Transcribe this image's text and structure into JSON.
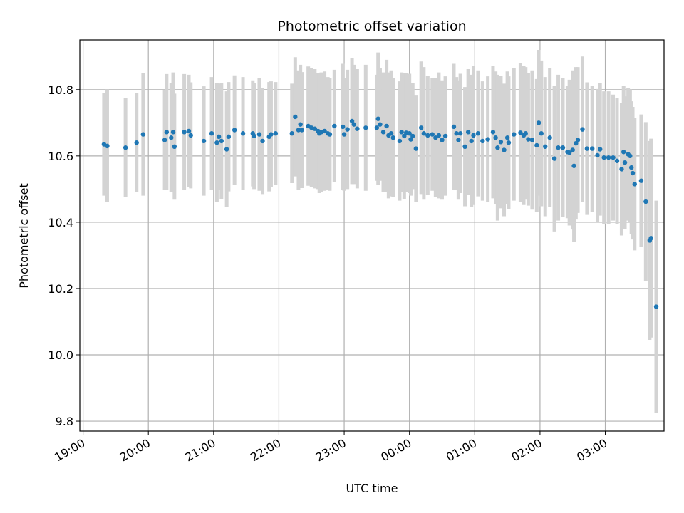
{
  "chart_data": {
    "type": "scatter",
    "title": "Photometric offset variation",
    "xlabel": "UTC time",
    "ylabel": "Photometric offset",
    "x_tick_labels": [
      "19:00",
      "20:00",
      "21:00",
      "22:00",
      "23:00",
      "00:00",
      "01:00",
      "02:00",
      "03:00"
    ],
    "y_tick_labels": [
      "9.8",
      "10.0",
      "10.2",
      "10.4",
      "10.6",
      "10.8"
    ],
    "xlim_hours": [
      18.95,
      27.9
    ],
    "ylim": [
      9.77,
      10.95
    ],
    "grid": true,
    "marker_color": "#1f77b4",
    "errorbar_color": "#d3d3d3",
    "points": [
      [
        19.32,
        10.635,
        0.155
      ],
      [
        19.37,
        10.63,
        0.17
      ],
      [
        19.65,
        10.625,
        0.15
      ],
      [
        19.82,
        10.64,
        0.15
      ],
      [
        19.92,
        10.665,
        0.185
      ],
      [
        20.25,
        10.648,
        0.15
      ],
      [
        20.28,
        10.672,
        0.175
      ],
      [
        20.35,
        10.655,
        0.165
      ],
      [
        20.38,
        10.672,
        0.18
      ],
      [
        20.4,
        10.628,
        0.16
      ],
      [
        20.55,
        10.672,
        0.175
      ],
      [
        20.62,
        10.675,
        0.17
      ],
      [
        20.65,
        10.662,
        0.16
      ],
      [
        20.85,
        10.645,
        0.165
      ],
      [
        20.97,
        10.668,
        0.17
      ],
      [
        21.05,
        10.64,
        0.18
      ],
      [
        21.08,
        10.658,
        0.16
      ],
      [
        21.12,
        10.645,
        0.175
      ],
      [
        21.2,
        10.62,
        0.175
      ],
      [
        21.23,
        10.658,
        0.165
      ],
      [
        21.32,
        10.678,
        0.165
      ],
      [
        21.45,
        10.668,
        0.17
      ],
      [
        21.6,
        10.668,
        0.16
      ],
      [
        21.62,
        10.66,
        0.16
      ],
      [
        21.7,
        10.665,
        0.17
      ],
      [
        21.75,
        10.645,
        0.16
      ],
      [
        21.85,
        10.658,
        0.165
      ],
      [
        21.88,
        10.665,
        0.16
      ],
      [
        21.95,
        10.668,
        0.155
      ],
      [
        22.2,
        10.668,
        0.15
      ],
      [
        22.25,
        10.718,
        0.18
      ],
      [
        22.3,
        10.678,
        0.18
      ],
      [
        22.33,
        10.695,
        0.18
      ],
      [
        22.35,
        10.678,
        0.175
      ],
      [
        22.45,
        10.69,
        0.18
      ],
      [
        22.5,
        10.685,
        0.18
      ],
      [
        22.55,
        10.682,
        0.18
      ],
      [
        22.6,
        10.675,
        0.175
      ],
      [
        22.62,
        10.668,
        0.18
      ],
      [
        22.65,
        10.672,
        0.18
      ],
      [
        22.7,
        10.675,
        0.18
      ],
      [
        22.75,
        10.668,
        0.17
      ],
      [
        22.78,
        10.665,
        0.17
      ],
      [
        22.85,
        10.69,
        0.17
      ],
      [
        22.98,
        10.688,
        0.19
      ],
      [
        23.0,
        10.665,
        0.17
      ],
      [
        23.05,
        10.68,
        0.18
      ],
      [
        23.12,
        10.705,
        0.19
      ],
      [
        23.15,
        10.695,
        0.18
      ],
      [
        23.2,
        10.682,
        0.18
      ],
      [
        23.33,
        10.685,
        0.19
      ],
      [
        23.5,
        10.685,
        0.16
      ],
      [
        23.52,
        10.712,
        0.2
      ],
      [
        23.55,
        10.695,
        0.17
      ],
      [
        23.6,
        10.672,
        0.18
      ],
      [
        23.65,
        10.69,
        0.2
      ],
      [
        23.68,
        10.662,
        0.19
      ],
      [
        23.72,
        10.668,
        0.19
      ],
      [
        23.75,
        10.655,
        0.18
      ],
      [
        23.85,
        10.645,
        0.18
      ],
      [
        23.88,
        10.672,
        0.18
      ],
      [
        23.92,
        10.66,
        0.19
      ],
      [
        23.95,
        10.67,
        0.18
      ],
      [
        24.0,
        10.668,
        0.18
      ],
      [
        24.02,
        10.65,
        0.17
      ],
      [
        24.05,
        10.66,
        0.16
      ],
      [
        24.1,
        10.622,
        0.16
      ],
      [
        24.18,
        10.685,
        0.2
      ],
      [
        24.22,
        10.668,
        0.2
      ],
      [
        24.28,
        10.662,
        0.18
      ],
      [
        24.35,
        10.665,
        0.17
      ],
      [
        24.4,
        10.655,
        0.18
      ],
      [
        24.45,
        10.662,
        0.19
      ],
      [
        24.5,
        10.648,
        0.18
      ],
      [
        24.55,
        10.66,
        0.18
      ],
      [
        24.68,
        10.688,
        0.19
      ],
      [
        24.72,
        10.668,
        0.17
      ],
      [
        24.75,
        10.648,
        0.18
      ],
      [
        24.78,
        10.668,
        0.18
      ],
      [
        24.85,
        10.628,
        0.18
      ],
      [
        24.9,
        10.672,
        0.19
      ],
      [
        24.95,
        10.645,
        0.2
      ],
      [
        24.98,
        10.662,
        0.21
      ],
      [
        25.05,
        10.668,
        0.19
      ],
      [
        25.12,
        10.645,
        0.18
      ],
      [
        25.2,
        10.65,
        0.19
      ],
      [
        25.28,
        10.672,
        0.2
      ],
      [
        25.32,
        10.655,
        0.2
      ],
      [
        25.35,
        10.625,
        0.22
      ],
      [
        25.4,
        10.642,
        0.2
      ],
      [
        25.45,
        10.618,
        0.2
      ],
      [
        25.5,
        10.655,
        0.2
      ],
      [
        25.52,
        10.64,
        0.2
      ],
      [
        25.6,
        10.665,
        0.2
      ],
      [
        25.7,
        10.67,
        0.21
      ],
      [
        25.75,
        10.662,
        0.21
      ],
      [
        25.78,
        10.668,
        0.2
      ],
      [
        25.82,
        10.65,
        0.2
      ],
      [
        25.88,
        10.648,
        0.21
      ],
      [
        25.95,
        10.632,
        0.2
      ],
      [
        25.98,
        10.7,
        0.22
      ],
      [
        26.02,
        10.668,
        0.22
      ],
      [
        26.08,
        10.628,
        0.21
      ],
      [
        26.15,
        10.655,
        0.21
      ],
      [
        26.22,
        10.592,
        0.22
      ],
      [
        26.28,
        10.625,
        0.22
      ],
      [
        26.35,
        10.625,
        0.21
      ],
      [
        26.42,
        10.612,
        0.2
      ],
      [
        26.45,
        10.61,
        0.22
      ],
      [
        26.5,
        10.618,
        0.24
      ],
      [
        26.52,
        10.57,
        0.23
      ],
      [
        26.55,
        10.638,
        0.23
      ],
      [
        26.58,
        10.648,
        0.22
      ],
      [
        26.65,
        10.68,
        0.22
      ],
      [
        26.72,
        10.622,
        0.2
      ],
      [
        26.8,
        10.622,
        0.19
      ],
      [
        26.88,
        10.602,
        0.2
      ],
      [
        26.92,
        10.62,
        0.2
      ],
      [
        26.98,
        10.595,
        0.2
      ],
      [
        27.05,
        10.595,
        0.2
      ],
      [
        27.12,
        10.595,
        0.19
      ],
      [
        27.18,
        10.585,
        0.19
      ],
      [
        27.25,
        10.56,
        0.2
      ],
      [
        27.28,
        10.612,
        0.2
      ],
      [
        27.3,
        10.58,
        0.2
      ],
      [
        27.35,
        10.605,
        0.2
      ],
      [
        27.38,
        10.6,
        0.2
      ],
      [
        27.4,
        10.565,
        0.2
      ],
      [
        27.42,
        10.548,
        0.2
      ],
      [
        27.45,
        10.515,
        0.2
      ],
      [
        27.55,
        10.525,
        0.2
      ],
      [
        27.62,
        10.462,
        0.24
      ],
      [
        27.68,
        10.345,
        0.3
      ],
      [
        27.7,
        10.352,
        0.3
      ],
      [
        27.78,
        10.145,
        0.32
      ]
    ]
  }
}
